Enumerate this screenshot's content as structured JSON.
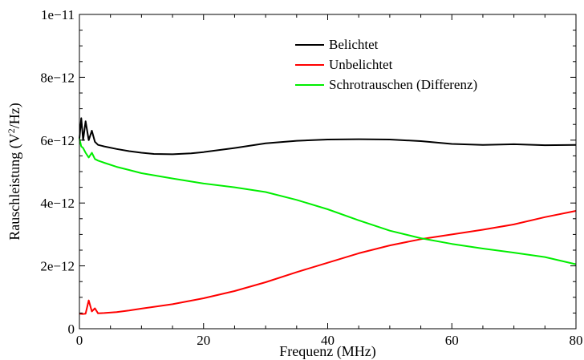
{
  "chart_data": {
    "type": "line",
    "title": "",
    "xlabel": "Frequenz (MHz)",
    "ylabel_main": "Rauschleistung (V",
    "ylabel_sup": "2",
    "ylabel_tail": "/Hz)",
    "xlim": [
      0,
      80
    ],
    "ylim": [
      0,
      1e-11
    ],
    "x_ticks": [
      0,
      20,
      40,
      60,
      80
    ],
    "x_tick_labels": [
      "0",
      "20",
      "40",
      "60",
      "80"
    ],
    "y_ticks": [
      0,
      2e-12,
      4e-12,
      6e-12,
      8e-12,
      1e-11
    ],
    "y_tick_labels": [
      "0",
      "2e−12",
      "4e−12",
      "6e−12",
      "8e−12",
      "1e−11"
    ],
    "grid": false,
    "legend_position": "top-right",
    "series": [
      {
        "name": "Belichtet",
        "color": "#000000",
        "x": [
          0,
          0.3,
          0.6,
          1.0,
          1.5,
          2,
          2.5,
          3,
          4,
          6,
          8,
          10,
          12,
          15,
          18,
          20,
          25,
          30,
          35,
          40,
          45,
          50,
          55,
          60,
          65,
          70,
          75,
          80
        ],
        "y": [
          6.05e-12,
          6.7e-12,
          6e-12,
          6.6e-12,
          6e-12,
          6.3e-12,
          5.95e-12,
          5.85e-12,
          5.8e-12,
          5.72e-12,
          5.65e-12,
          5.6e-12,
          5.56e-12,
          5.55e-12,
          5.58e-12,
          5.62e-12,
          5.75e-12,
          5.9e-12,
          5.98e-12,
          6.02e-12,
          6.03e-12,
          6.02e-12,
          5.97e-12,
          5.88e-12,
          5.85e-12,
          5.87e-12,
          5.84e-12,
          5.85e-12
        ]
      },
      {
        "name": "Unbelichtet",
        "color": "#ff0000",
        "x": [
          0,
          0.5,
          1,
          1.5,
          2,
          2.5,
          3,
          4,
          6,
          8,
          10,
          15,
          20,
          25,
          30,
          35,
          40,
          45,
          50,
          55,
          60,
          65,
          70,
          75,
          80
        ],
        "y": [
          4.8e-13,
          4.7e-13,
          4.8e-13,
          9e-13,
          5.5e-13,
          6.5e-13,
          4.9e-13,
          5e-13,
          5.3e-13,
          5.8e-13,
          6.4e-13,
          7.8e-13,
          9.7e-13,
          1.2e-12,
          1.48e-12,
          1.8e-12,
          2.1e-12,
          2.4e-12,
          2.65e-12,
          2.85e-12,
          3e-12,
          3.15e-12,
          3.32e-12,
          3.55e-12,
          3.75e-12
        ]
      },
      {
        "name": "Schrotrauschen (Differenz)",
        "color": "#00ee00",
        "x": [
          0,
          0.3,
          0.6,
          1.0,
          1.5,
          2,
          2.5,
          3,
          4,
          6,
          8,
          10,
          15,
          20,
          25,
          30,
          35,
          40,
          45,
          50,
          55,
          60,
          65,
          70,
          75,
          80
        ],
        "y": [
          6.05e-12,
          5.8e-12,
          5.75e-12,
          5.6e-12,
          5.45e-12,
          5.6e-12,
          5.4e-12,
          5.35e-12,
          5.28e-12,
          5.15e-12,
          5.05e-12,
          4.95e-12,
          4.78e-12,
          4.62e-12,
          4.5e-12,
          4.35e-12,
          4.1e-12,
          3.8e-12,
          3.45e-12,
          3.12e-12,
          2.88e-12,
          2.7e-12,
          2.55e-12,
          2.42e-12,
          2.28e-12,
          2.05e-12
        ]
      }
    ]
  }
}
